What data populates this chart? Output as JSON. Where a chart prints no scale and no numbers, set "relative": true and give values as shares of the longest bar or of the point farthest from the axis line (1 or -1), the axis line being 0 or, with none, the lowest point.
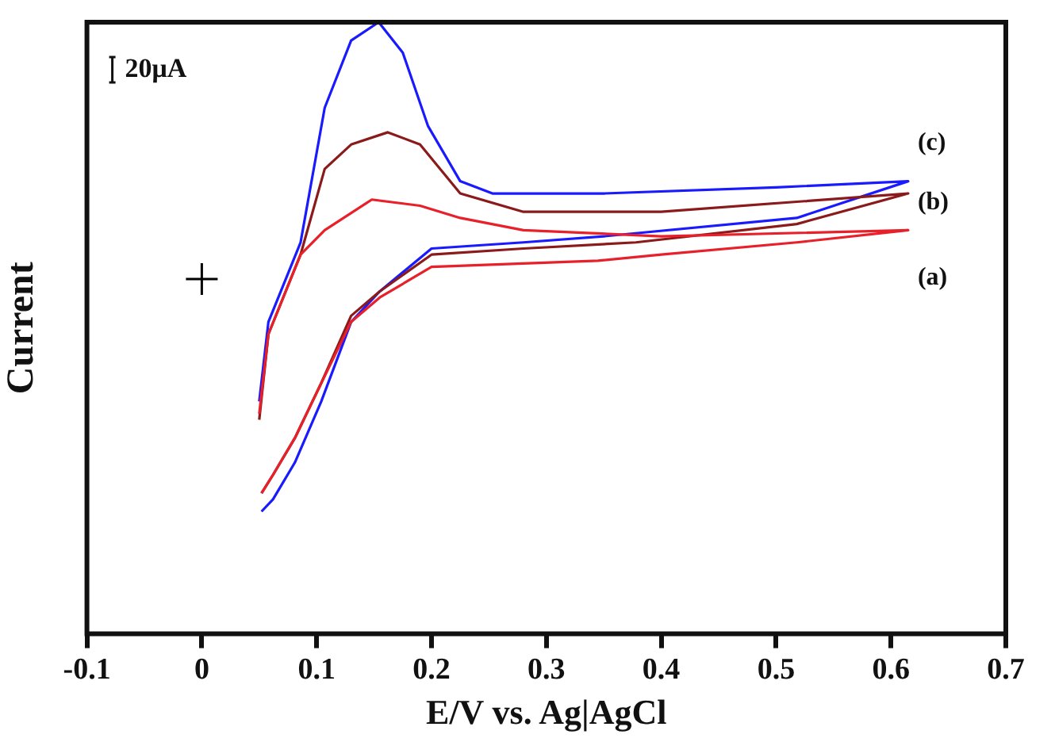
{
  "chart_data": {
    "type": "line",
    "relative": true,
    "xlabel": "E/V vs. Ag|AgCl",
    "ylabel": "Current",
    "annotations": [
      "20μA"
    ],
    "xlim": [
      -0.1,
      0.7
    ],
    "xticks": [
      -0.1,
      0,
      0.1,
      0.2,
      0.3,
      0.4,
      0.5,
      0.6,
      0.7
    ],
    "legend": false,
    "grid": false,
    "marker": "none",
    "line_style": "solid",
    "series": [
      {
        "name": "(a)",
        "color": "#e8202a",
        "x": [
          0.05,
          0.058,
          0.086,
          0.107,
          0.148,
          0.19,
          0.225,
          0.28,
          0.4,
          0.615,
          0.518,
          0.4,
          0.345,
          0.2,
          0.155,
          0.13,
          0.104,
          0.081,
          0.062,
          0.052
        ],
        "values": [
          0.36,
          0.49,
          0.62,
          0.66,
          0.71,
          0.7,
          0.68,
          0.66,
          0.65,
          0.66,
          0.64,
          0.62,
          0.61,
          0.6,
          0.55,
          0.51,
          0.41,
          0.32,
          0.26,
          0.23
        ]
      },
      {
        "name": "(b)",
        "color": "#8b1a1a",
        "x": [
          0.05,
          0.058,
          0.086,
          0.107,
          0.13,
          0.162,
          0.19,
          0.225,
          0.28,
          0.4,
          0.615,
          0.518,
          0.378,
          0.28,
          0.2,
          0.155,
          0.13,
          0.104,
          0.081,
          0.062,
          0.052
        ],
        "values": [
          0.35,
          0.49,
          0.62,
          0.76,
          0.8,
          0.82,
          0.8,
          0.72,
          0.69,
          0.69,
          0.72,
          0.67,
          0.64,
          0.63,
          0.62,
          0.56,
          0.52,
          0.41,
          0.32,
          0.26,
          0.23
        ]
      },
      {
        "name": "(c)",
        "color": "#1a1aff",
        "x": [
          0.05,
          0.058,
          0.086,
          0.107,
          0.13,
          0.154,
          0.175,
          0.197,
          0.225,
          0.253,
          0.35,
          0.5,
          0.615,
          0.518,
          0.35,
          0.28,
          0.2,
          0.155,
          0.13,
          0.104,
          0.081,
          0.062,
          0.052
        ],
        "values": [
          0.38,
          0.51,
          0.64,
          0.86,
          0.97,
          1,
          0.95,
          0.83,
          0.74,
          0.72,
          0.72,
          0.73,
          0.74,
          0.68,
          0.65,
          0.64,
          0.63,
          0.56,
          0.51,
          0.38,
          0.28,
          0.22,
          0.2
        ]
      },
      {
        "type": "scatter",
        "marker": "cross",
        "color": "#000000",
        "x": [
          0
        ],
        "values": [
          0.58
        ]
      }
    ]
  }
}
